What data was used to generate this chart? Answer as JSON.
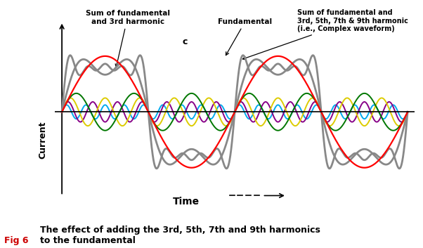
{
  "title_fig": "Fig 6",
  "title_rest": " The effect of adding the 3rd, 5th, 7th and 9th harmonics\nto the fundamental",
  "title_color_fig": "#cc0000",
  "title_color_rest": "#000000",
  "xlabel": "Time",
  "ylabel": "Current",
  "fundamental_color": "#ff0000",
  "harmonic3_color": "#007700",
  "harmonic5_color": "#ddcc00",
  "harmonic7_color": "#880088",
  "harmonic9_color": "#00aaee",
  "sum13_color": "#888888",
  "complex_color": "#888888",
  "background_color": "#ffffff",
  "n_points": 3000,
  "amplitude_fundamental": 1.0,
  "amplitude_3rd": 0.333,
  "amplitude_5th": 0.25,
  "amplitude_7th": 0.18,
  "amplitude_9th": 0.125,
  "figsize": [
    6.02,
    3.53
  ],
  "dpi": 100
}
